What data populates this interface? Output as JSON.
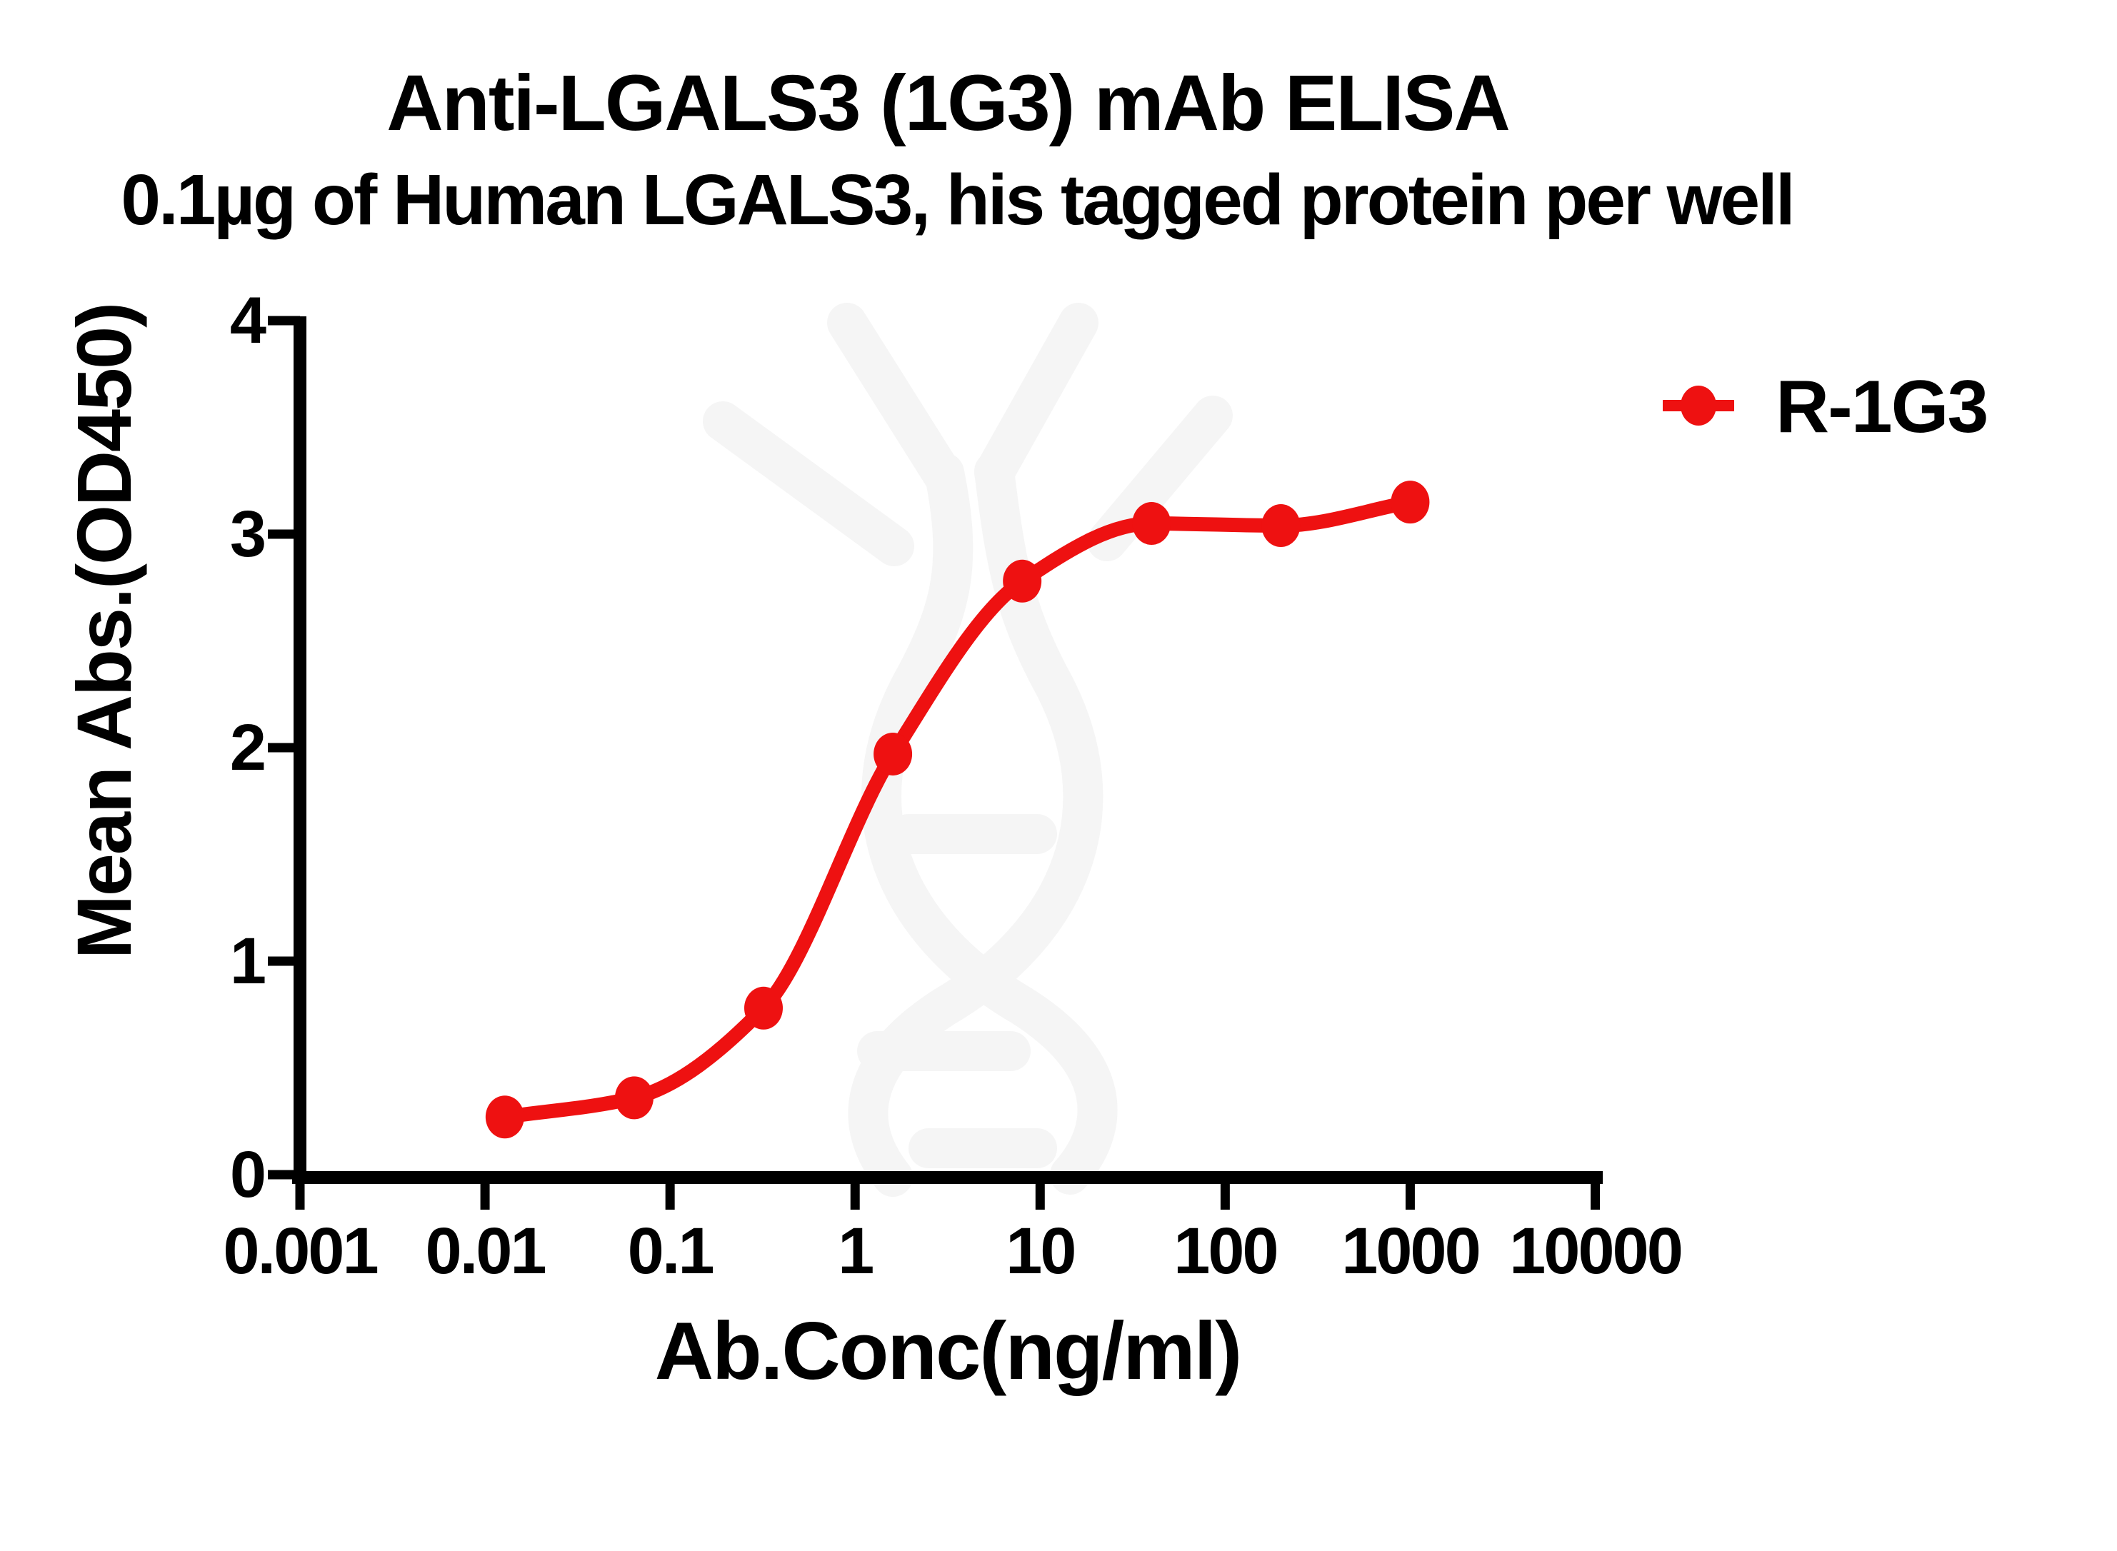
{
  "colors": {
    "series_red": "#EE1111",
    "axis_black": "#000000",
    "watermark_gray": "#f5f5f5",
    "background": "#ffffff"
  },
  "watermark": {
    "name": "antibody-dna-helix-logo",
    "color": "#f5f5f5"
  },
  "chart_data": {
    "type": "line",
    "title": "Anti-LGALS3 (1G3) mAb ELISA",
    "subtitle": "0.1µg of Human LGALS3, his tagged protein per well",
    "xlabel": "Ab.Conc(ng/ml)",
    "ylabel": "Mean Abs.(OD450)",
    "x_scale": "log10",
    "xlim": [
      0.001,
      10000
    ],
    "ylim": [
      0,
      4
    ],
    "x_ticks": [
      0.001,
      0.01,
      0.1,
      1,
      10,
      100,
      1000,
      10000
    ],
    "x_tick_labels": [
      "0.001",
      "0.01",
      "0.1",
      "1",
      "10",
      "100",
      "1000",
      "10000"
    ],
    "y_ticks": [
      0,
      1,
      2,
      3,
      4
    ],
    "y_tick_labels": [
      "0",
      "1",
      "2",
      "3",
      "4"
    ],
    "grid": false,
    "legend_position": "right",
    "legend": [
      {
        "label": "R-1G3",
        "color": "#EE1111",
        "marker": "filled-circle"
      }
    ],
    "series": [
      {
        "name": "R-1G3",
        "color": "#EE1111",
        "marker": "filled-circle",
        "line_style": "sigmoid-fit",
        "x": [
          0.0128,
          0.064,
          0.32,
          1.6,
          8,
          40,
          200,
          1000
        ],
        "y": [
          0.27,
          0.36,
          0.78,
          1.97,
          2.78,
          3.05,
          3.04,
          3.15
        ]
      }
    ]
  }
}
